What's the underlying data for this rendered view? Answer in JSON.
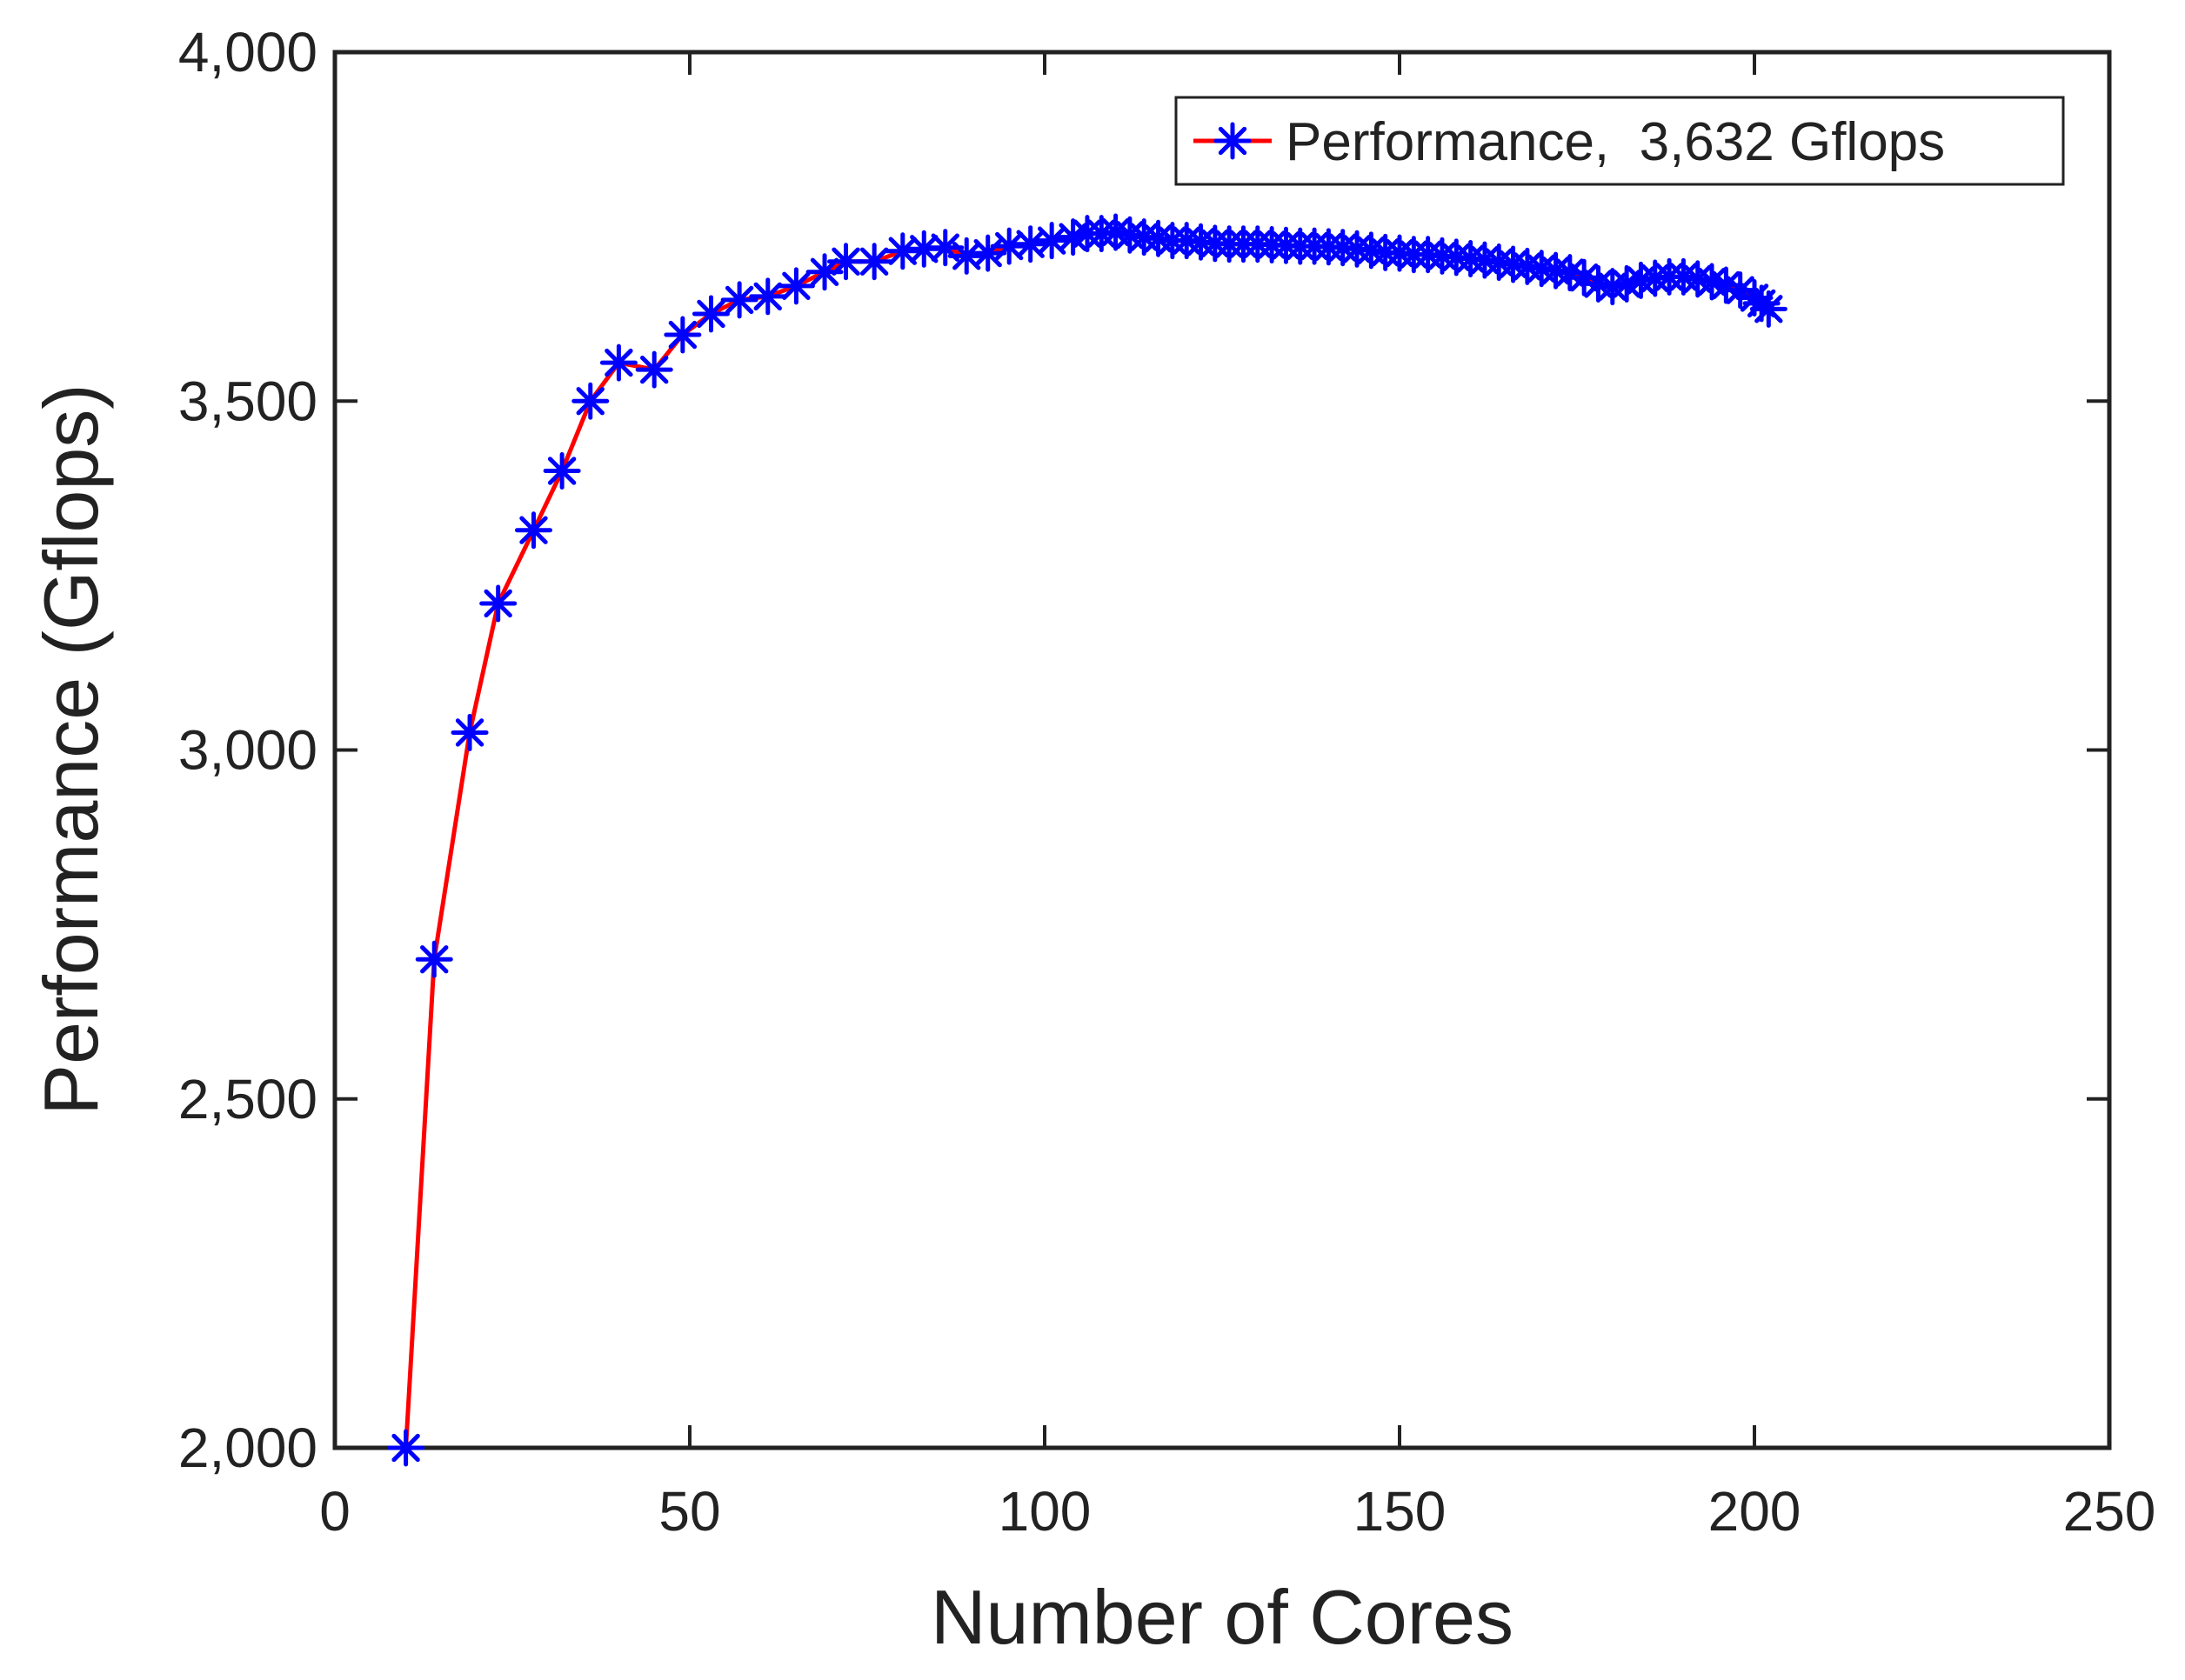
{
  "chart_data": {
    "type": "line",
    "xlabel": "Number of Cores",
    "ylabel": "Performance (Gflops)",
    "xlim": [
      0,
      250
    ],
    "ylim": [
      2000,
      4000
    ],
    "xticks": [
      0,
      50,
      100,
      150,
      200,
      250
    ],
    "yticks": [
      2000,
      2500,
      3000,
      3500,
      4000
    ],
    "xtick_labels": [
      "0",
      "50",
      "100",
      "150",
      "200",
      "250"
    ],
    "ytick_labels": [
      "2,000",
      "2,500",
      "3,000",
      "3,500",
      "4,000"
    ],
    "grid": false,
    "legend_position": "top-right",
    "series": [
      {
        "name": "Performance,  3,632 Gflops",
        "line_color": "#ff0000",
        "marker_color": "#0000ff",
        "marker": "asterisk",
        "points": [
          [
            10,
            2000
          ],
          [
            14,
            2700
          ],
          [
            19,
            3025
          ],
          [
            23,
            3210
          ],
          [
            28,
            3315
          ],
          [
            32,
            3400
          ],
          [
            36,
            3500
          ],
          [
            40,
            3555
          ],
          [
            45,
            3545
          ],
          [
            49,
            3595
          ],
          [
            53,
            3625
          ],
          [
            57,
            3645
          ],
          [
            61,
            3650
          ],
          [
            65,
            3665
          ],
          [
            69,
            3685
          ],
          [
            72,
            3700
          ],
          [
            76,
            3700
          ],
          [
            80,
            3715
          ],
          [
            83,
            3718
          ],
          [
            86,
            3720
          ],
          [
            89,
            3708
          ],
          [
            92,
            3712
          ],
          [
            95,
            3722
          ],
          [
            98,
            3725
          ],
          [
            101,
            3730
          ],
          [
            104,
            3735
          ],
          [
            106,
            3740
          ],
          [
            108,
            3740
          ],
          [
            110,
            3742
          ],
          [
            112,
            3738
          ],
          [
            114,
            3735
          ],
          [
            116,
            3733
          ],
          [
            118,
            3730
          ],
          [
            120,
            3730
          ],
          [
            122,
            3728
          ],
          [
            124,
            3726
          ],
          [
            126,
            3725
          ],
          [
            128,
            3725
          ],
          [
            130,
            3725
          ],
          [
            132,
            3724
          ],
          [
            134,
            3723
          ],
          [
            136,
            3722
          ],
          [
            138,
            3722
          ],
          [
            140,
            3721
          ],
          [
            142,
            3720
          ],
          [
            144,
            3718
          ],
          [
            146,
            3716
          ],
          [
            148,
            3713
          ],
          [
            150,
            3712
          ],
          [
            152,
            3710
          ],
          [
            154,
            3710
          ],
          [
            156,
            3708
          ],
          [
            158,
            3706
          ],
          [
            160,
            3704
          ],
          [
            162,
            3702
          ],
          [
            164,
            3699
          ],
          [
            166,
            3696
          ],
          [
            168,
            3693
          ],
          [
            170,
            3690
          ],
          [
            172,
            3687
          ],
          [
            174,
            3684
          ],
          [
            176,
            3677
          ],
          [
            178,
            3668
          ],
          [
            180,
            3664
          ],
          [
            182,
            3668
          ],
          [
            184,
            3673
          ],
          [
            186,
            3676
          ],
          [
            188,
            3678
          ],
          [
            190,
            3678
          ],
          [
            192,
            3675
          ],
          [
            194,
            3671
          ],
          [
            196,
            3666
          ],
          [
            198,
            3659
          ],
          [
            200,
            3648
          ],
          [
            201,
            3640
          ],
          [
            202,
            3632
          ]
        ]
      }
    ]
  }
}
